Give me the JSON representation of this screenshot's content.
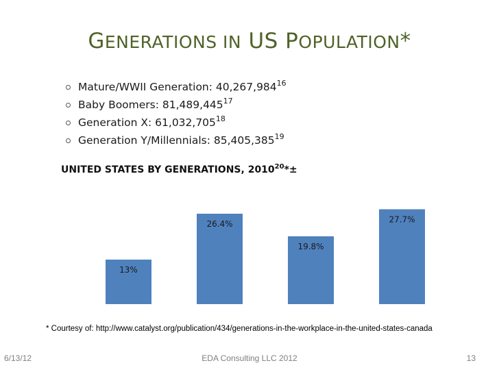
{
  "slide": {
    "title_parts": [
      "G",
      "ENERATIONS IN",
      " US P",
      "OPULATION",
      "*"
    ],
    "footnote": "* Courtesy of: http://www.catalyst.org/publication/434/generations-in-the-workplace-in-the-united-states-canada",
    "footer_date": "6/13/12",
    "footer_center": "EDA Consulting LLC 2012",
    "page_number": "13"
  },
  "bullets": [
    {
      "text": "Mature/WWII Generation: 40,267,984",
      "ref": "16"
    },
    {
      "text": "Baby Boomers: 81,489,445",
      "ref": "17"
    },
    {
      "text": "Generation X: 61,032,705",
      "ref": "18"
    },
    {
      "text": "Generation Y/Millennials: 85,405,385",
      "ref": "19"
    }
  ],
  "chart_title": {
    "text": "UNITED STATES BY GENERATIONS, 2010",
    "ref": "20",
    "suffix": "*±"
  },
  "chart_data": {
    "type": "bar",
    "categories": [
      "",
      "",
      "",
      ""
    ],
    "values": [
      13,
      26.4,
      19.8,
      27.7
    ],
    "data_labels": [
      "13%",
      "26.4%",
      "19.8%",
      "27.7%"
    ],
    "ylim": [
      0,
      31
    ],
    "bar_color": "#4f81bd",
    "grid": false,
    "axes_visible": false
  }
}
